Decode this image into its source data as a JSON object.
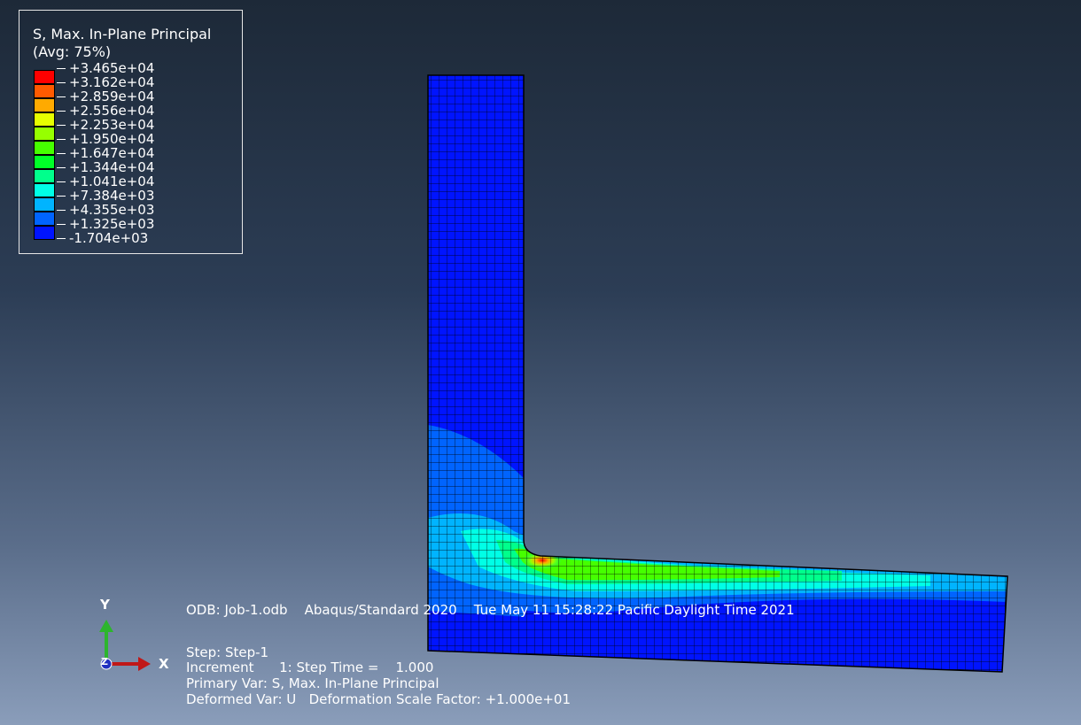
{
  "legend": {
    "title_line1": "S, Max. In-Plane Principal",
    "title_line2": "(Avg: 75%)",
    "colors": [
      "#ff0000",
      "#ff5a00",
      "#ffaa00",
      "#e6ff00",
      "#96ff00",
      "#46ff00",
      "#00ff28",
      "#00ff8c",
      "#00ffe6",
      "#00b4ff",
      "#0064ff",
      "#0014ff"
    ],
    "labels": [
      "+3.465e+04",
      "+3.162e+04",
      "+2.859e+04",
      "+2.556e+04",
      "+2.253e+04",
      "+1.950e+04",
      "+1.647e+04",
      "+1.344e+04",
      "+1.041e+04",
      "+7.384e+03",
      "+4.355e+03",
      "+1.325e+03",
      "-1.704e+03"
    ]
  },
  "info": {
    "odb_line": "ODB: Job-1.odb    Abaqus/Standard 2020    Tue May 11 15:28:22 Pacific Daylight Time 2021",
    "step_line": "Step: Step-1",
    "increment_line": "Increment      1: Step Time =    1.000",
    "primary_var_line": "Primary Var: S, Max. In-Plane Principal",
    "deformed_var_line": "Deformed Var: U   Deformation Scale Factor: +1.000e+01"
  },
  "triad": {
    "y_label": "Y",
    "x_label": "X",
    "z_label": "Z"
  }
}
